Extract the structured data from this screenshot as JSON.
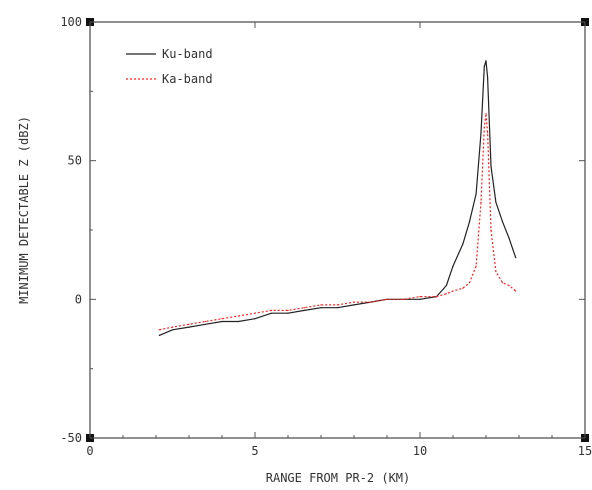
{
  "chart_data": {
    "type": "line",
    "title": "",
    "xlabel": "RANGE FROM PR-2 (KM)",
    "ylabel": "MINIMUM DETECTABLE Z (dBZ)",
    "xlim": [
      0,
      15
    ],
    "ylim": [
      -50,
      100
    ],
    "x_ticks": [
      0,
      5,
      10,
      15
    ],
    "x_tick_labels": [
      "0",
      "5",
      "10",
      "15"
    ],
    "y_ticks": [
      -50,
      0,
      50,
      100
    ],
    "y_tick_labels": [
      "-50",
      "0",
      "50",
      "100"
    ],
    "grid": false,
    "legend_position": "top-left",
    "series": [
      {
        "name": "Ku-band",
        "color": "#222222",
        "line_style": "solid",
        "x": [
          2.1,
          2.5,
          3.0,
          3.5,
          4.0,
          4.5,
          5.0,
          5.5,
          6.0,
          6.5,
          7.0,
          7.5,
          8.0,
          8.5,
          9.0,
          9.5,
          10.0,
          10.5,
          10.8,
          11.0,
          11.3,
          11.5,
          11.7,
          11.85,
          11.95,
          12.0,
          12.05,
          12.15,
          12.3,
          12.5,
          12.7,
          12.9
        ],
        "y": [
          -13,
          -11,
          -10,
          -9,
          -8,
          -8,
          -7,
          -5,
          -5,
          -4,
          -3,
          -3,
          -2,
          -1,
          0,
          0,
          0,
          1,
          5,
          12,
          20,
          28,
          38,
          60,
          84,
          86,
          80,
          48,
          35,
          28,
          22,
          15
        ]
      },
      {
        "name": "Ka-band",
        "color": "#ff2020",
        "line_style": "dotted",
        "x": [
          2.1,
          2.5,
          3.0,
          3.5,
          4.0,
          4.5,
          5.0,
          5.5,
          6.0,
          6.5,
          7.0,
          7.5,
          8.0,
          8.5,
          9.0,
          9.5,
          10.0,
          10.5,
          10.8,
          11.0,
          11.3,
          11.5,
          11.7,
          11.85,
          11.95,
          12.0,
          12.05,
          12.15,
          12.3,
          12.5,
          12.7,
          12.9
        ],
        "y": [
          -11,
          -10,
          -9,
          -8,
          -7,
          -6,
          -5,
          -4,
          -4,
          -3,
          -2,
          -2,
          -1,
          -1,
          0,
          0,
          1,
          1,
          2,
          3,
          4,
          6,
          12,
          35,
          62,
          67,
          60,
          25,
          10,
          6,
          5,
          3
        ]
      }
    ]
  }
}
